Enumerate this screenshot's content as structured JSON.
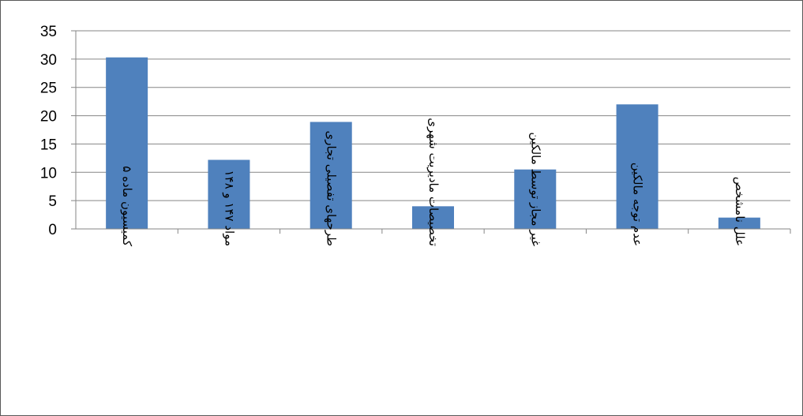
{
  "chart_data": {
    "type": "bar",
    "title": "",
    "xlabel": "",
    "ylabel": "",
    "ylim": [
      0,
      35
    ],
    "yticks": [
      0,
      5,
      10,
      15,
      20,
      25,
      30,
      35
    ],
    "grid": true,
    "legend": "none",
    "bar_color": "#4F81BD",
    "categories": [
      "کمیسیون ماده ۵",
      "مواد ۱۴۷ و ۱۴۸",
      "طرحهای تفصیلی تجاری",
      "تخصیصات مادیریت شهری",
      "غیر مجاز توسط مالکین",
      "عدم توجه مالکین",
      "علل نامشخص"
    ],
    "values": [
      30.3,
      12.2,
      18.9,
      4.0,
      10.5,
      22.0,
      2.0
    ]
  }
}
